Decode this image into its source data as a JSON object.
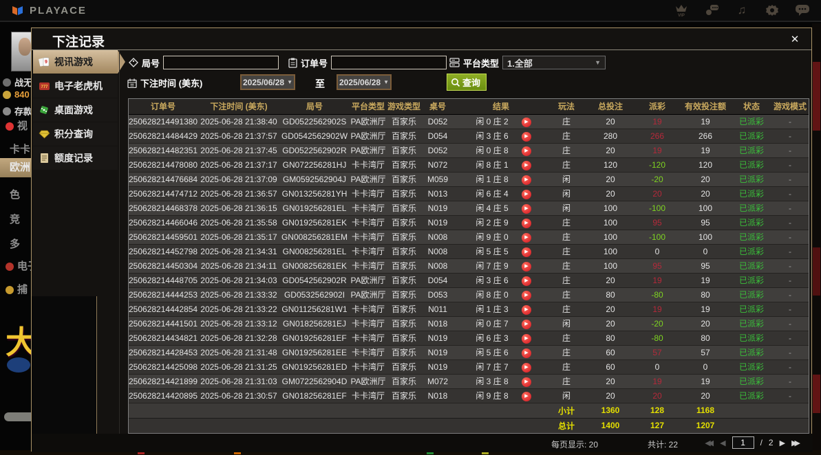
{
  "topbar": {
    "brand": "PLAYACE"
  },
  "lobby": {
    "username": "战无",
    "balance": "840",
    "deposit": "存款",
    "nav": [
      "视",
      "卡卡",
      "欧洲",
      "色",
      "竞",
      "多",
      "电子",
      "捕"
    ],
    "banner_char": "大"
  },
  "modal": {
    "title": "下注记录",
    "close_icon": "✕",
    "tabs": [
      {
        "label": "视讯游戏"
      },
      {
        "label": "电子老虎机"
      },
      {
        "label": "桌面游戏"
      },
      {
        "label": "积分查询"
      },
      {
        "label": "额度记录"
      }
    ],
    "filters": {
      "game_no_label": "局号",
      "order_no_label": "订单号",
      "platform_label": "平台类型",
      "platform_value": "1.全部",
      "time_label": "下注时间 (美东)",
      "date_from": "2025/06/28",
      "date_to": "2025/06/28",
      "to_label": "至",
      "search_label": "查询",
      "dropdown_arrow": "▼"
    },
    "table": {
      "headers": [
        "订单号",
        "下注时间 (美东)",
        "局号",
        "平台类型",
        "游戏类型",
        "桌号",
        "结果",
        "玩法",
        "总投注",
        "派彩",
        "有效投注额",
        "状态",
        "游戏模式"
      ],
      "play_icon": "▶",
      "rows": [
        {
          "order": "250628214491380",
          "time": "2025-06-28 21:38:40",
          "game": "GD0522562902S",
          "platform": "PA欧洲厅",
          "type": "百家乐",
          "table": "D052",
          "result": "闲 0 庄 2",
          "play": "庄",
          "bet": "20",
          "payout": "19",
          "valid": "19",
          "status": "已派彩",
          "mode": "-"
        },
        {
          "order": "250628214484429",
          "time": "2025-06-28 21:37:57",
          "game": "GD0542562902W",
          "platform": "PA欧洲厅",
          "type": "百家乐",
          "table": "D054",
          "result": "闲 3 庄 6",
          "play": "庄",
          "bet": "280",
          "payout": "266",
          "valid": "266",
          "status": "已派彩",
          "mode": "-"
        },
        {
          "order": "250628214482351",
          "time": "2025-06-28 21:37:45",
          "game": "GD0522562902R",
          "platform": "PA欧洲厅",
          "type": "百家乐",
          "table": "D052",
          "result": "闲 0 庄 8",
          "play": "庄",
          "bet": "20",
          "payout": "19",
          "valid": "19",
          "status": "已派彩",
          "mode": "-"
        },
        {
          "order": "250628214478080",
          "time": "2025-06-28 21:37:17",
          "game": "GN072256281HJ",
          "platform": "卡卡湾厅",
          "type": "百家乐",
          "table": "N072",
          "result": "闲 8 庄 1",
          "play": "庄",
          "bet": "120",
          "payout": "-120",
          "valid": "120",
          "status": "已派彩",
          "mode": "-"
        },
        {
          "order": "250628214476684",
          "time": "2025-06-28 21:37:09",
          "game": "GM0592562904J",
          "platform": "PA欧洲厅",
          "type": "百家乐",
          "table": "M059",
          "result": "闲 1 庄 8",
          "play": "闲",
          "bet": "20",
          "payout": "-20",
          "valid": "20",
          "status": "已派彩",
          "mode": "-"
        },
        {
          "order": "250628214474712",
          "time": "2025-06-28 21:36:57",
          "game": "GN013256281YH",
          "platform": "卡卡湾厅",
          "type": "百家乐",
          "table": "N013",
          "result": "闲 6 庄 4",
          "play": "闲",
          "bet": "20",
          "payout": "20",
          "valid": "20",
          "status": "已派彩",
          "mode": "-"
        },
        {
          "order": "250628214468378",
          "time": "2025-06-28 21:36:15",
          "game": "GN019256281EL",
          "platform": "卡卡湾厅",
          "type": "百家乐",
          "table": "N019",
          "result": "闲 4 庄 5",
          "play": "闲",
          "bet": "100",
          "payout": "-100",
          "valid": "100",
          "status": "已派彩",
          "mode": "-"
        },
        {
          "order": "250628214466046",
          "time": "2025-06-28 21:35:58",
          "game": "GN019256281EK",
          "platform": "卡卡湾厅",
          "type": "百家乐",
          "table": "N019",
          "result": "闲 2 庄 9",
          "play": "庄",
          "bet": "100",
          "payout": "95",
          "valid": "95",
          "status": "已派彩",
          "mode": "-"
        },
        {
          "order": "250628214459501",
          "time": "2025-06-28 21:35:17",
          "game": "GN008256281EM",
          "platform": "卡卡湾厅",
          "type": "百家乐",
          "table": "N008",
          "result": "闲 9 庄 0",
          "play": "庄",
          "bet": "100",
          "payout": "-100",
          "valid": "100",
          "status": "已派彩",
          "mode": "-"
        },
        {
          "order": "250628214452798",
          "time": "2025-06-28 21:34:31",
          "game": "GN008256281EL",
          "platform": "卡卡湾厅",
          "type": "百家乐",
          "table": "N008",
          "result": "闲 5 庄 5",
          "play": "庄",
          "bet": "100",
          "payout": "0",
          "valid": "0",
          "status": "已派彩",
          "mode": "-"
        },
        {
          "order": "250628214450304",
          "time": "2025-06-28 21:34:11",
          "game": "GN008256281EK",
          "platform": "卡卡湾厅",
          "type": "百家乐",
          "table": "N008",
          "result": "闲 7 庄 9",
          "play": "庄",
          "bet": "100",
          "payout": "95",
          "valid": "95",
          "status": "已派彩",
          "mode": "-"
        },
        {
          "order": "250628214448705",
          "time": "2025-06-28 21:34:03",
          "game": "GD0542562902R",
          "platform": "PA欧洲厅",
          "type": "百家乐",
          "table": "D054",
          "result": "闲 3 庄 6",
          "play": "庄",
          "bet": "20",
          "payout": "19",
          "valid": "19",
          "status": "已派彩",
          "mode": "-"
        },
        {
          "order": "250628214444253",
          "time": "2025-06-28 21:33:32",
          "game": "GD0532562902I",
          "platform": "PA欧洲厅",
          "type": "百家乐",
          "table": "D053",
          "result": "闲 8 庄 0",
          "play": "庄",
          "bet": "80",
          "payout": "-80",
          "valid": "80",
          "status": "已派彩",
          "mode": "-"
        },
        {
          "order": "250628214442854",
          "time": "2025-06-28 21:33:22",
          "game": "GN011256281W1",
          "platform": "卡卡湾厅",
          "type": "百家乐",
          "table": "N011",
          "result": "闲 1 庄 3",
          "play": "庄",
          "bet": "20",
          "payout": "19",
          "valid": "19",
          "status": "已派彩",
          "mode": "-"
        },
        {
          "order": "250628214441501",
          "time": "2025-06-28 21:33:12",
          "game": "GN018256281EJ",
          "platform": "卡卡湾厅",
          "type": "百家乐",
          "table": "N018",
          "result": "闲 0 庄 7",
          "play": "闲",
          "bet": "20",
          "payout": "-20",
          "valid": "20",
          "status": "已派彩",
          "mode": "-"
        },
        {
          "order": "250628214434821",
          "time": "2025-06-28 21:32:28",
          "game": "GN019256281EF",
          "platform": "卡卡湾厅",
          "type": "百家乐",
          "table": "N019",
          "result": "闲 6 庄 3",
          "play": "庄",
          "bet": "80",
          "payout": "-80",
          "valid": "80",
          "status": "已派彩",
          "mode": "-"
        },
        {
          "order": "250628214428453",
          "time": "2025-06-28 21:31:48",
          "game": "GN019256281EE",
          "platform": "卡卡湾厅",
          "type": "百家乐",
          "table": "N019",
          "result": "闲 5 庄 6",
          "play": "庄",
          "bet": "60",
          "payout": "57",
          "valid": "57",
          "status": "已派彩",
          "mode": "-"
        },
        {
          "order": "250628214425098",
          "time": "2025-06-28 21:31:25",
          "game": "GN019256281ED",
          "platform": "卡卡湾厅",
          "type": "百家乐",
          "table": "N019",
          "result": "闲 7 庄 7",
          "play": "庄",
          "bet": "60",
          "payout": "0",
          "valid": "0",
          "status": "已派彩",
          "mode": "-"
        },
        {
          "order": "250628214421899",
          "time": "2025-06-28 21:31:03",
          "game": "GM0722562904D",
          "platform": "PA欧洲厅",
          "type": "百家乐",
          "table": "M072",
          "result": "闲 3 庄 8",
          "play": "庄",
          "bet": "20",
          "payout": "19",
          "valid": "19",
          "status": "已派彩",
          "mode": "-"
        },
        {
          "order": "250628214420895",
          "time": "2025-06-28 21:30:57",
          "game": "GN018256281EF",
          "platform": "卡卡湾厅",
          "type": "百家乐",
          "table": "N018",
          "result": "闲 9 庄 8",
          "play": "闲",
          "bet": "20",
          "payout": "20",
          "valid": "20",
          "status": "已派彩",
          "mode": "-"
        }
      ],
      "subtotal": {
        "label": "小计",
        "bet": "1360",
        "payout": "128",
        "valid": "1168"
      },
      "total": {
        "label": "总计",
        "bet": "1400",
        "payout": "127",
        "valid": "1207"
      }
    },
    "pagination": {
      "per_page": "每页显示: 20",
      "total_count": "共计: 22",
      "page": "1",
      "separator": "/",
      "total_pages": "2",
      "first_icon": "◀◀",
      "prev_icon": "◀",
      "next_icon": "▶",
      "last_icon": "▶▶"
    }
  }
}
